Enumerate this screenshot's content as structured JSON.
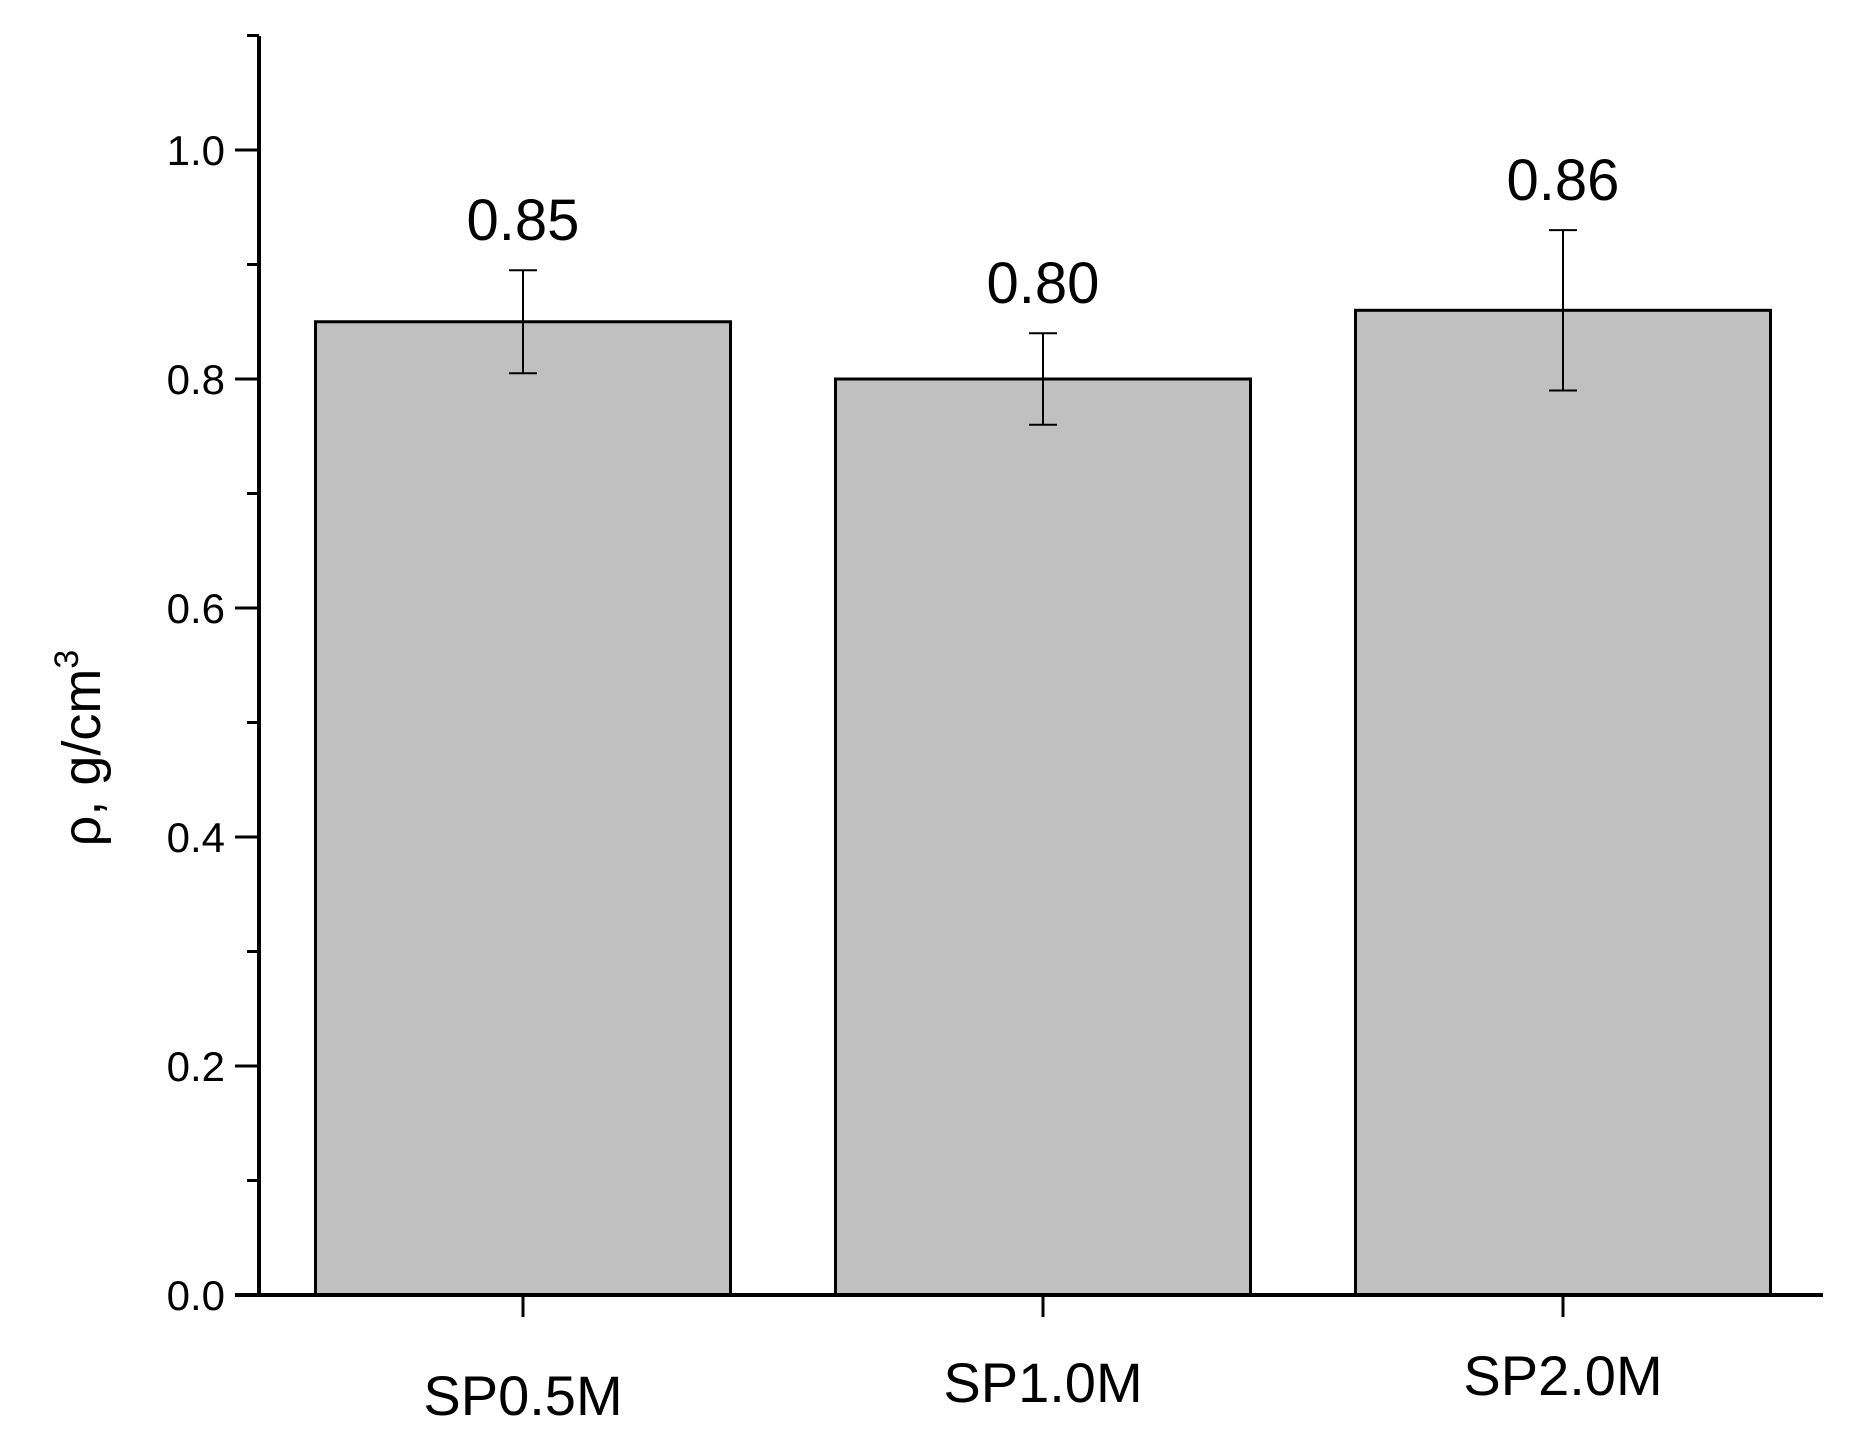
{
  "chart_data": {
    "type": "bar",
    "categories": [
      "SP0.5M",
      "SP1.0M",
      "SP2.0M"
    ],
    "values": [
      0.85,
      0.8,
      0.86
    ],
    "errors": [
      0.045,
      0.04,
      0.07
    ],
    "data_labels": [
      "0.85",
      "0.80",
      "0.86"
    ],
    "title": "",
    "xlabel": "",
    "ylabel": "ρ, g/cm",
    "ylabel_superscript": "3",
    "ylim": [
      0,
      1.1
    ],
    "yticks": [
      0.0,
      0.2,
      0.4,
      0.6,
      0.8,
      1.0
    ],
    "ytick_labels": [
      "0.0",
      "0.2",
      "0.4",
      "0.6",
      "0.8",
      "1.0"
    ],
    "minor_tick_step": 0.1,
    "grid": false,
    "legend": "none",
    "bar_color": "#c0c0c0",
    "edge_color": "#000000"
  }
}
